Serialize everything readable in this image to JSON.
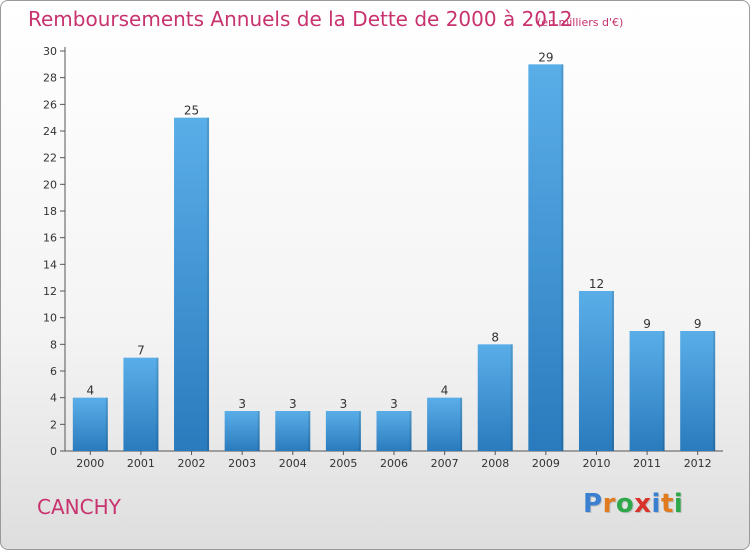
{
  "header": {
    "title": "Remboursements Annuels de la Dette de 2000 à 2012",
    "subtitle": "(en milliers d'€)"
  },
  "footer": {
    "city": "CANCHY",
    "brand_letters": [
      "P",
      "r",
      "o",
      "x",
      "i",
      "t",
      "i"
    ],
    "brand_colors": [
      "#3a7fd0",
      "#e07b1f",
      "#2fa84a",
      "#d8342c",
      "#3a7fd0",
      "#e07b1f",
      "#2fa84a"
    ]
  },
  "colors": {
    "bar_light": "#5aaee8",
    "bar_dark": "#2a7bbd",
    "title": "#c8326e"
  },
  "chart_data": {
    "type": "bar",
    "categories": [
      "2000",
      "2001",
      "2002",
      "2003",
      "2004",
      "2005",
      "2006",
      "2007",
      "2008",
      "2009",
      "2010",
      "2011",
      "2012"
    ],
    "values": [
      4,
      7,
      25,
      3,
      3,
      3,
      3,
      4,
      8,
      29,
      12,
      9,
      9
    ],
    "ylim": [
      0,
      30
    ],
    "yticks": [
      0,
      2,
      4,
      6,
      8,
      10,
      12,
      14,
      16,
      18,
      20,
      22,
      24,
      26,
      28,
      30
    ],
    "grid": false,
    "data_labels": true
  }
}
